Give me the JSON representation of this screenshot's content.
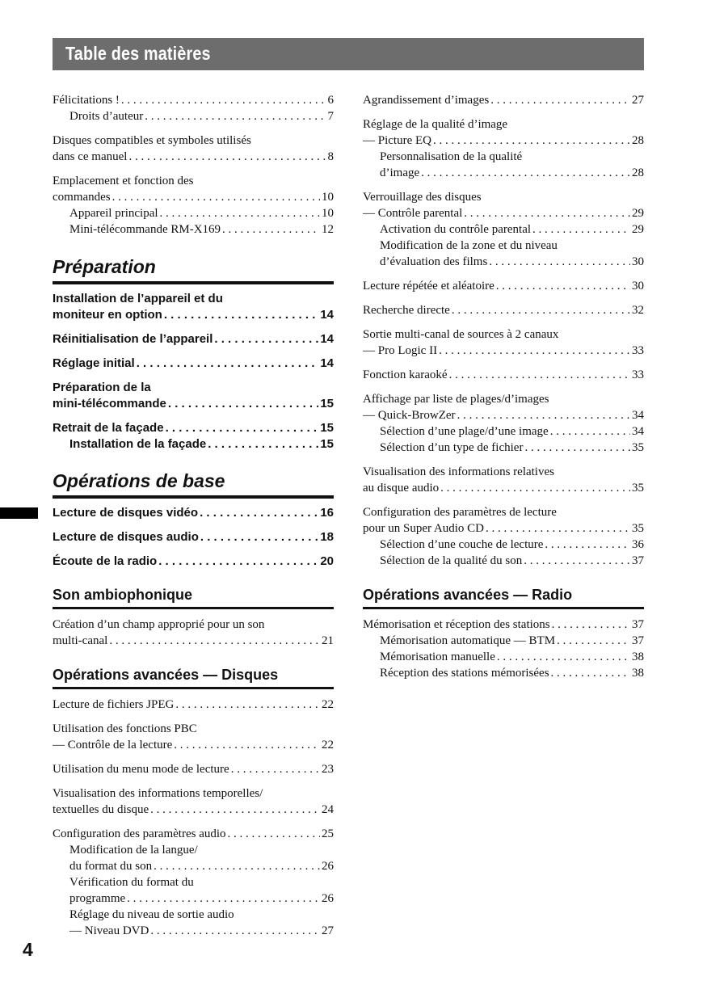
{
  "header": {
    "title": "Table des matières"
  },
  "page_number": "4",
  "columns": [
    [
      {
        "heading": null,
        "style": "serif",
        "groups": [
          [
            {
              "t": "Félicitations !",
              "p": "6"
            },
            {
              "t": "Droits d’auteur",
              "p": "7",
              "i": true
            }
          ],
          [
            {
              "t": "Disques compatibles et symboles utilisés"
            },
            {
              "t": "dans ce manuel",
              "p": "8"
            }
          ],
          [
            {
              "t": "Emplacement et fonction des"
            },
            {
              "t": "commandes",
              "p": "10"
            },
            {
              "t": "Appareil principal",
              "p": "10",
              "i": true
            },
            {
              "t": "Mini-télécommande RM-X169",
              "p": "12",
              "i": true
            }
          ]
        ]
      },
      {
        "heading": "Préparation",
        "hstyle": "big",
        "style": "sans",
        "groups": [
          [
            {
              "t": "Installation de l’appareil et du"
            },
            {
              "t": "moniteur en option",
              "p": "14"
            }
          ],
          [
            {
              "t": "Réinitialisation de l’appareil",
              "p": "14"
            }
          ],
          [
            {
              "t": "Réglage initial",
              "p": "14"
            }
          ],
          [
            {
              "t": "Préparation de la"
            },
            {
              "t": "mini-télécommande",
              "p": "15"
            }
          ],
          [
            {
              "t": "Retrait de la façade",
              "p": "15"
            },
            {
              "t": "Installation de la façade",
              "p": "15",
              "i": true
            }
          ]
        ]
      },
      {
        "heading": "Opérations de base",
        "hstyle": "big",
        "style": "sans",
        "groups": [
          [
            {
              "t": "Lecture de disques vidéo",
              "p": "16"
            }
          ],
          [
            {
              "t": "Lecture de disques audio",
              "p": "18"
            }
          ],
          [
            {
              "t": "Écoute de la radio",
              "p": "20"
            }
          ]
        ]
      },
      {
        "heading": "Son ambiophonique",
        "hstyle": "med",
        "style": "serif",
        "groups": [
          [
            {
              "t": "Création d’un champ approprié pour un son"
            },
            {
              "t": "multi-canal",
              "p": "21"
            }
          ]
        ]
      },
      {
        "heading": "Opérations avancées — Disques",
        "hstyle": "med",
        "style": "serif",
        "groups": [
          [
            {
              "t": "Lecture de fichiers JPEG",
              "p": "22"
            }
          ],
          [
            {
              "t": "Utilisation des fonctions PBC"
            },
            {
              "t": "— Contrôle de la lecture",
              "p": "22"
            }
          ],
          [
            {
              "t": "Utilisation du menu mode de lecture",
              "p": "23"
            }
          ],
          [
            {
              "t": "Visualisation des informations temporelles/"
            },
            {
              "t": "textuelles du disque",
              "p": "24"
            }
          ],
          [
            {
              "t": "Configuration des paramètres audio",
              "p": "25"
            },
            {
              "t": "Modification de la langue/",
              "i": true
            },
            {
              "t": "du format du son",
              "p": "26",
              "i": true
            },
            {
              "t": "Vérification du format du",
              "i": true
            },
            {
              "t": "programme",
              "p": "26",
              "i": true
            },
            {
              "t": "Réglage du niveau de sortie audio",
              "i": true
            },
            {
              "t": "— Niveau DVD",
              "p": "27",
              "i": true
            }
          ]
        ]
      }
    ],
    [
      {
        "heading": null,
        "style": "serif",
        "groups": [
          [
            {
              "t": "Agrandissement d’images",
              "p": "27"
            }
          ],
          [
            {
              "t": "Réglage de la qualité d’image"
            },
            {
              "t": "— Picture EQ",
              "p": "28"
            },
            {
              "t": "Personnalisation de la qualité",
              "i": true
            },
            {
              "t": "d’image",
              "p": "28",
              "i": true
            }
          ],
          [
            {
              "t": "Verrouillage des disques"
            },
            {
              "t": "— Contrôle parental",
              "p": "29"
            },
            {
              "t": "Activation du contrôle parental",
              "p": "29",
              "i": true
            },
            {
              "t": "Modification de la zone et du niveau",
              "i": true
            },
            {
              "t": "d’évaluation des films",
              "p": "30",
              "i": true
            }
          ],
          [
            {
              "t": "Lecture répétée et aléatoire",
              "p": "30"
            }
          ],
          [
            {
              "t": "Recherche directe",
              "p": "32"
            }
          ],
          [
            {
              "t": "Sortie multi-canal de sources à 2 canaux"
            },
            {
              "t": "— Pro Logic II",
              "p": "33"
            }
          ],
          [
            {
              "t": "Fonction karaoké",
              "p": "33"
            }
          ],
          [
            {
              "t": "Affichage par liste de plages/d’images"
            },
            {
              "t": "— Quick-BrowZer",
              "p": "34"
            },
            {
              "t": "Sélection d’une plage/d’une image",
              "p": "34",
              "i": true
            },
            {
              "t": "Sélection d’un type de fichier",
              "p": "35",
              "i": true
            }
          ],
          [
            {
              "t": "Visualisation des informations relatives"
            },
            {
              "t": "au disque audio",
              "p": "35"
            }
          ],
          [
            {
              "t": "Configuration des paramètres de lecture"
            },
            {
              "t": "pour un Super Audio CD",
              "p": "35"
            },
            {
              "t": "Sélection d’une couche de lecture",
              "p": "36",
              "i": true
            },
            {
              "t": "Sélection de la qualité du son",
              "p": "37",
              "i": true
            }
          ]
        ]
      },
      {
        "heading": "Opérations avancées — Radio",
        "hstyle": "med",
        "style": "serif",
        "groups": [
          [
            {
              "t": "Mémorisation et réception des stations",
              "p": "37"
            },
            {
              "t": "Mémorisation automatique — BTM",
              "p": "37",
              "i": true
            },
            {
              "t": "Mémorisation manuelle",
              "p": "38",
              "i": true
            },
            {
              "t": "Réception des stations mémorisées",
              "p": "38",
              "i": true
            }
          ]
        ]
      }
    ]
  ]
}
